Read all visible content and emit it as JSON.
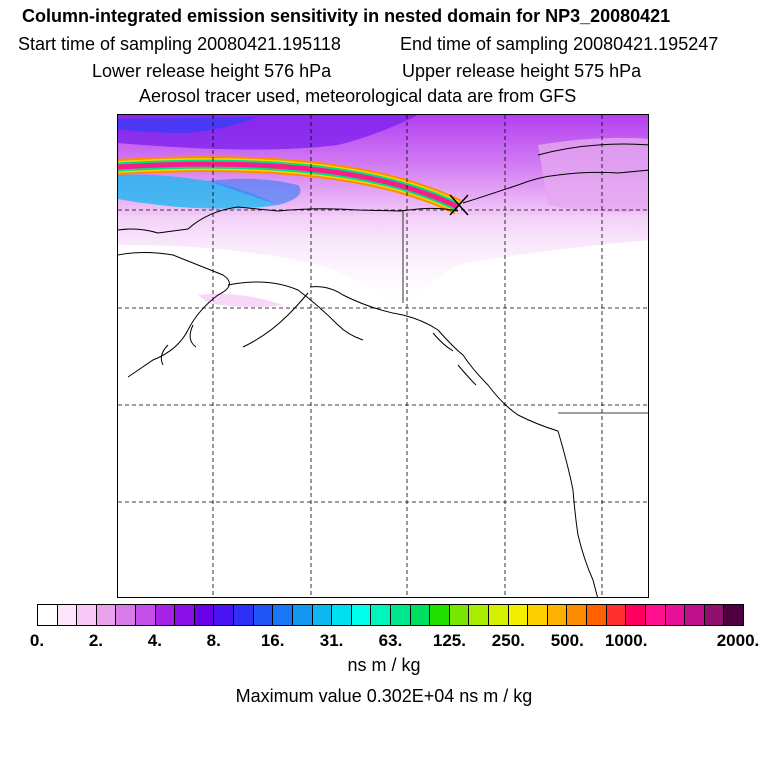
{
  "header": {
    "title": "Column-integrated emission sensitivity in nested domain for NP3_20080421",
    "start_sampling": "Start time of sampling 20080421.195118",
    "end_sampling": "End time of sampling 20080421.195247",
    "lower_release": "Lower release height  576 hPa",
    "upper_release": "Upper release height  575 hPa",
    "aerosol_note": "Aerosol tracer used, meteorological data are from GFS"
  },
  "colorbar": {
    "colors": [
      "#ffffff",
      "#fbe6fb",
      "#f5c8f5",
      "#eaa3ea",
      "#d97ae9",
      "#c44fe8",
      "#a522e6",
      "#8a10e8",
      "#6a00e8",
      "#4a14f0",
      "#3030f5",
      "#1f55f7",
      "#1877f5",
      "#1298f2",
      "#0eb8ef",
      "#00dff0",
      "#00ffea",
      "#00f5be",
      "#00e88f",
      "#00e060",
      "#20e000",
      "#78e600",
      "#a8ec00",
      "#d4f000",
      "#f4ee00",
      "#ffd000",
      "#ffb000",
      "#ff8c00",
      "#ff6000",
      "#ff3030",
      "#ff0060",
      "#ff108f",
      "#e8109a",
      "#c0108c",
      "#901070",
      "#500040"
    ],
    "tick_labels": [
      "0.",
      "2.",
      "4.",
      "8.",
      "16.",
      "31.",
      "63.",
      "125.",
      "250.",
      "500.",
      "1000.",
      "2000."
    ],
    "unit": "ns m / kg",
    "max_value": "Maximum value  0.302E+04 ns m / kg"
  }
}
